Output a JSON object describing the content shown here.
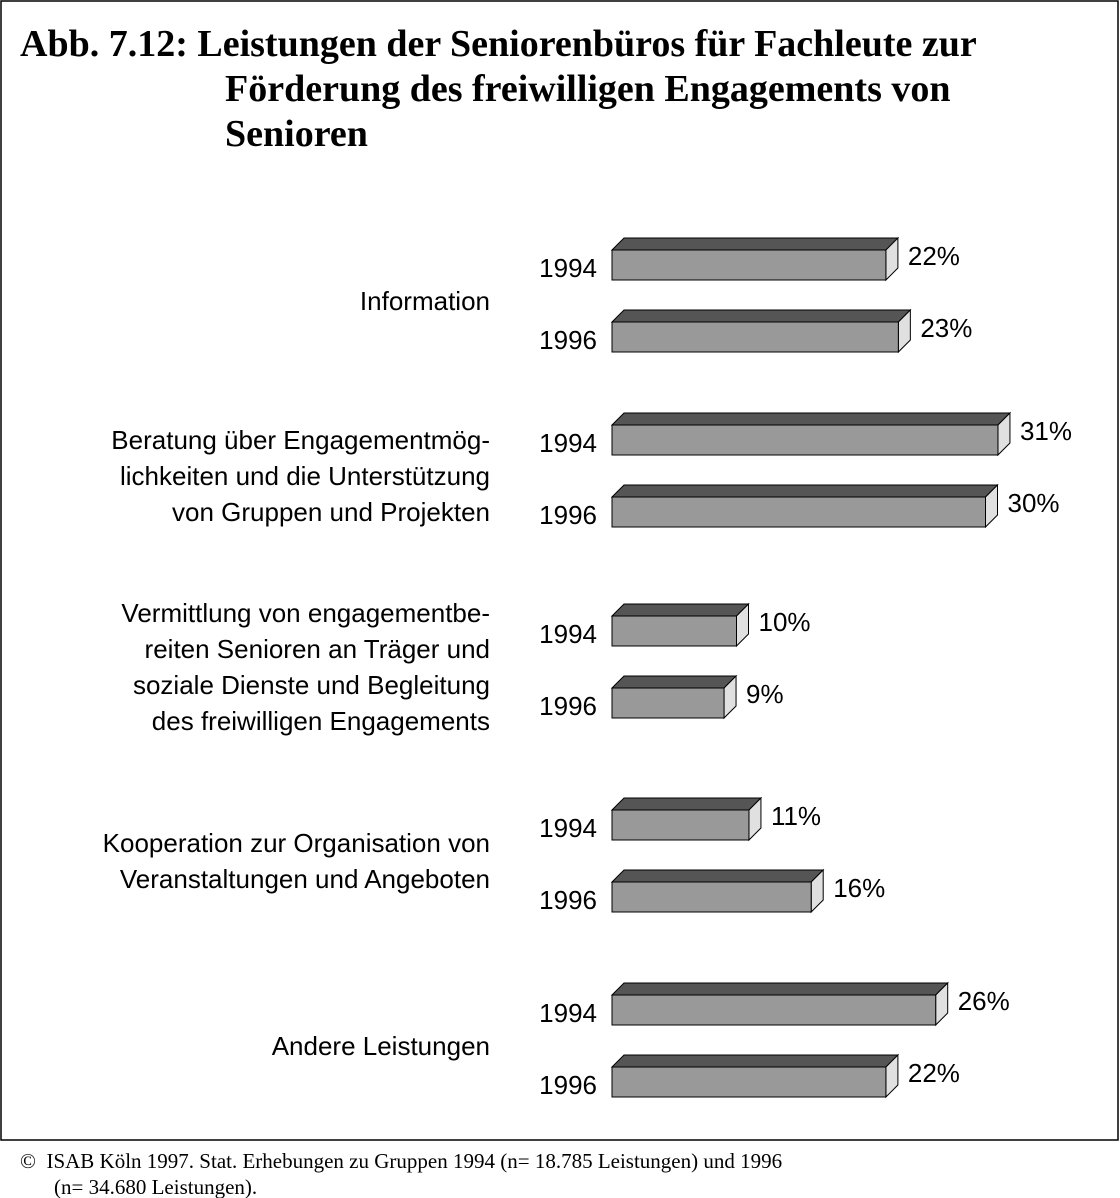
{
  "chart_data": {
    "type": "bar3d",
    "title": "Abb. 7.12: Leistungen der Seniorenbüros für Fachleute zur\nFörderung des freiwilligen Engagements von\nSenioren",
    "categories": [
      "Information",
      "Beratung über Engagementmög-\nlichkeiten und die Unterstützung\nvon Gruppen und Projekten",
      "Vermittlung von engagementbe-\nreiten Senioren an Träger und\nsoziale Dienste und Begleitung\ndes freiwilligen Engagements",
      "Kooperation zur Organisation von\nVeranstaltungen und Angeboten",
      "Andere Leistungen"
    ],
    "series": [
      {
        "name": "1994",
        "color": "#999999",
        "values": [
          22,
          31,
          10,
          11,
          26
        ],
        "value_labels": [
          "22%",
          "31%",
          "10%",
          "11%",
          "26%"
        ]
      },
      {
        "name": "1996",
        "color": "#999999",
        "values": [
          23,
          30,
          9,
          16,
          22
        ],
        "value_labels": [
          "23%",
          "30%",
          "9%",
          "16%",
          "22%"
        ]
      }
    ],
    "footnote": "©  ISAB Köln 1997. Stat. Erhebungen zu Gruppen 1994 (n= 18.785 Leistungen) und 1996\n(n= 34.680 Leistungen)."
  }
}
